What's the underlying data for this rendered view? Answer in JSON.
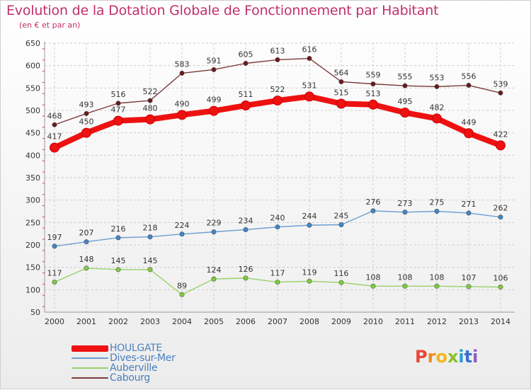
{
  "title": "Evolution de la Dotation Globale de Fonctionnement par Habitant",
  "subtitle": "(en € et par an)",
  "logo_text": [
    "P",
    "r",
    "o",
    "x",
    "i",
    "t",
    "i"
  ],
  "logo_colors": [
    "#e8473a",
    "#f08a1c",
    "#f2b619",
    "#8bbf2a",
    "#2a9ad6",
    "#3a6fd0",
    "#8a5bc8"
  ],
  "chart_data": {
    "type": "line",
    "title": "Evolution de la Dotation Globale de Fonctionnement par Habitant",
    "subtitle": "(en € et par an)",
    "x": [
      2000,
      2001,
      2002,
      2003,
      2004,
      2005,
      2006,
      2007,
      2008,
      2009,
      2010,
      2011,
      2012,
      2013,
      2014
    ],
    "ylim": [
      50,
      650
    ],
    "yticks": [
      50,
      100,
      150,
      200,
      250,
      300,
      350,
      400,
      450,
      500,
      550,
      600,
      650
    ],
    "grid": true,
    "legend": "bottom-left",
    "series": [
      {
        "name": "HOULGATE",
        "color": "#ee1111",
        "marker": "#ee1111",
        "values": [
          417,
          450,
          477,
          480,
          490,
          499,
          511,
          522,
          531,
          515,
          513,
          495,
          482,
          449,
          422
        ]
      },
      {
        "name": "Dives-sur-Mer",
        "color": "#6c9fcf",
        "marker": "#3f86cc",
        "values": [
          197,
          207,
          216,
          218,
          224,
          229,
          234,
          240,
          244,
          245,
          276,
          273,
          275,
          271,
          262
        ]
      },
      {
        "name": "Auberville",
        "color": "#9ad16a",
        "marker": "#7fcc3a",
        "values": [
          117,
          148,
          145,
          145,
          89,
          124,
          126,
          117,
          119,
          116,
          108,
          108,
          108,
          107,
          106
        ]
      },
      {
        "name": "Cabourg",
        "color": "#7b3a3a",
        "marker": "#6b1a1a",
        "values": [
          468,
          493,
          516,
          522,
          583,
          591,
          605,
          613,
          616,
          564,
          559,
          555,
          553,
          556,
          539
        ]
      }
    ]
  }
}
